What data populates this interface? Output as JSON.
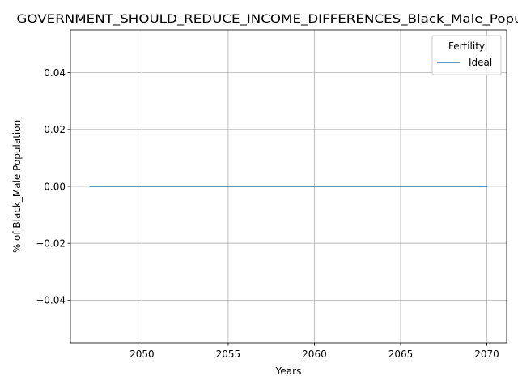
{
  "chart_data": {
    "type": "line",
    "title": "GOVERNMENT_SHOULD_REDUCE_INCOME_DIFFERENCES_Black_Male_Population",
    "xlabel": "Years",
    "ylabel": "% of Black_Male Population",
    "xlim": [
      2045.85,
      2071.15
    ],
    "ylim": [
      -0.055,
      0.055
    ],
    "x_ticks": [
      2050,
      2055,
      2060,
      2065,
      2070
    ],
    "y_ticks": [
      -0.04,
      -0.02,
      0.0,
      0.02,
      0.04
    ],
    "x_tick_labels": [
      "2050",
      "2055",
      "2060",
      "2065",
      "2070"
    ],
    "y_tick_labels": [
      "−0.04",
      "−0.02",
      "0.00",
      "0.02",
      "0.04"
    ],
    "grid": true,
    "legend": {
      "title": "Fertility",
      "placement": "top-right"
    },
    "series": [
      {
        "name": "Ideal",
        "color": "#1f77b4",
        "x": [
          2047,
          2048,
          2049,
          2050,
          2051,
          2052,
          2053,
          2054,
          2055,
          2056,
          2057,
          2058,
          2059,
          2060,
          2061,
          2062,
          2063,
          2064,
          2065,
          2066,
          2067,
          2068,
          2069,
          2070
        ],
        "y": [
          0,
          0,
          0,
          0,
          0,
          0,
          0,
          0,
          0,
          0,
          0,
          0,
          0,
          0,
          0,
          0,
          0,
          0,
          0,
          0,
          0,
          0,
          0,
          0
        ]
      }
    ]
  }
}
